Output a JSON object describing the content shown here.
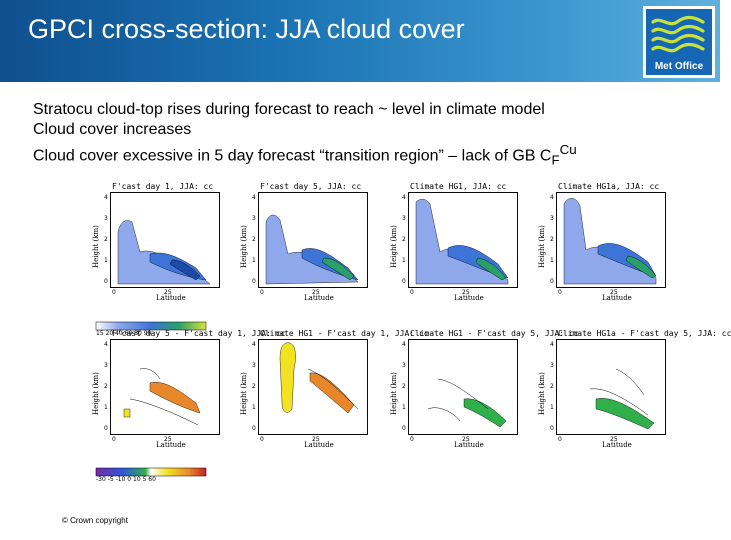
{
  "slide": {
    "title": "GPCI cross-section: JJA cloud cover",
    "logo_text": "Met Office",
    "bullets": [
      {
        "text": "Stratocu cloud-top rises during forecast to reach ~ level in climate model"
      },
      {
        "text": "Cloud cover increases"
      },
      {
        "text": "Cloud cover excessive in 5 day forecast “transition region” – lack of GB C",
        "sub": "F",
        "sup": "Cu"
      }
    ],
    "copyright": "© Crown copyright"
  },
  "figure": {
    "panels": [
      {
        "title": "F'cast day 1, JJA: cc",
        "ylabel": "Height (km)",
        "xlabel": "Latitude",
        "yticks": [
          "4",
          "3",
          "2",
          "1",
          "0"
        ],
        "xticks": [
          "0",
          "25"
        ]
      },
      {
        "title": "F'cast day 5, JJA: cc",
        "ylabel": "Height (km)",
        "xlabel": "Latitude",
        "yticks": [
          "4",
          "3",
          "2",
          "1",
          "0"
        ],
        "xticks": [
          "0",
          "25"
        ]
      },
      {
        "title": "Climate HG1, JJA: cc",
        "ylabel": "Height (km)",
        "xlabel": "Latitude",
        "yticks": [
          "4",
          "3",
          "2",
          "1",
          "0"
        ],
        "xticks": [
          "0",
          "25"
        ]
      },
      {
        "title": "Climate HG1a, JJA: cc",
        "ylabel": "Height (km)",
        "xlabel": "Latitude",
        "yticks": [
          "4",
          "3",
          "2",
          "1",
          "0"
        ],
        "xticks": [
          "0",
          "25"
        ]
      },
      {
        "title": "F'cast day 5 - F'cast day 1, JJA: cc",
        "ylabel": "Height (km)",
        "xlabel": "Latitude",
        "yticks": [
          "4",
          "3",
          "2",
          "1",
          "0"
        ],
        "xticks": [
          "0",
          "25"
        ]
      },
      {
        "title": "Climate HG1 - F'cast day 1, JJA: cc",
        "ylabel": "Height (km)",
        "xlabel": "Latitude",
        "yticks": [
          "4",
          "3",
          "2",
          "1",
          "0"
        ],
        "xticks": [
          "0",
          "25"
        ]
      },
      {
        "title": "Climate HG1 - F'cast day 5, JJA: cc",
        "ylabel": "Height (km)",
        "xlabel": "Latitude",
        "yticks": [
          "4",
          "3",
          "2",
          "1",
          "0"
        ],
        "xticks": [
          "0",
          "25"
        ]
      },
      {
        "title": "Climate HG1a - F'cast day 5, JJA: cc",
        "ylabel": "Height (km)",
        "xlabel": "Latitude",
        "yticks": [
          "4",
          "3",
          "2",
          "1",
          "0"
        ],
        "xticks": [
          "0",
          "25"
        ]
      }
    ],
    "colorbar_top": "15 20 40 60 80 90",
    "colorbar_bottom": "-30 -5 -10 0 10 5 60"
  },
  "colors": {
    "header_dark": "#0f4f8f",
    "header_light": "#5fb0dd",
    "cloud_light": "#8fa8ec",
    "cloud_mid": "#3d74d8",
    "cloud_core": "#2a9f6a",
    "diff_positive": "#e8872a",
    "diff_yellow": "#f2e222",
    "diff_green": "#2fb04a"
  }
}
